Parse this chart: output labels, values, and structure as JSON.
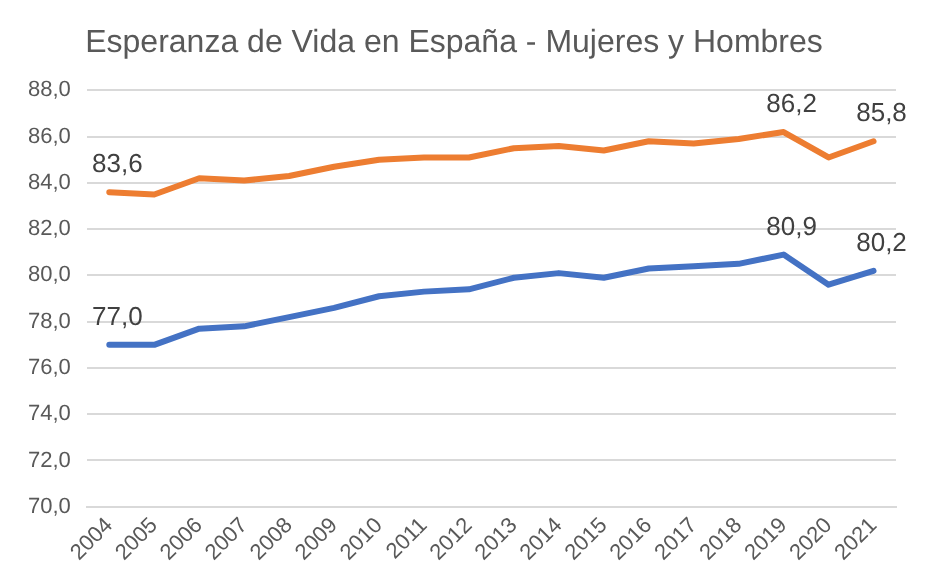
{
  "chart_data": {
    "type": "line",
    "title": "Esperanza de Vida en España - Mujeres y Hombres",
    "categories": [
      "2004",
      "2005",
      "2006",
      "2007",
      "2008",
      "2009",
      "2010",
      "2011",
      "2012",
      "2013",
      "2014",
      "2015",
      "2016",
      "2017",
      "2018",
      "2019",
      "2020",
      "2021"
    ],
    "series": [
      {
        "color": "#ed7d31",
        "values": [
          83.6,
          83.5,
          84.2,
          84.1,
          84.3,
          84.7,
          85.0,
          85.1,
          85.1,
          85.5,
          85.6,
          85.4,
          85.8,
          85.7,
          85.9,
          86.2,
          85.1,
          85.8
        ],
        "value_labels": [
          "83,6",
          null,
          null,
          null,
          null,
          null,
          null,
          null,
          null,
          null,
          null,
          null,
          null,
          null,
          null,
          "86,2",
          null,
          "85,8"
        ]
      },
      {
        "color": "#4472c4",
        "values": [
          77.0,
          77.0,
          77.7,
          77.8,
          78.2,
          78.6,
          79.1,
          79.3,
          79.4,
          79.9,
          80.1,
          79.9,
          80.3,
          80.4,
          80.5,
          80.9,
          79.6,
          80.2
        ],
        "value_labels": [
          "77,0",
          null,
          null,
          null,
          null,
          null,
          null,
          null,
          null,
          null,
          null,
          null,
          null,
          null,
          null,
          "80,9",
          null,
          "80,2"
        ]
      }
    ],
    "ylim": [
      70,
      88
    ],
    "yticks": [
      {
        "value": 70,
        "label": "70,0"
      },
      {
        "value": 72,
        "label": "72,0"
      },
      {
        "value": 74,
        "label": "74,0"
      },
      {
        "value": 76,
        "label": "76,0"
      },
      {
        "value": 78,
        "label": "78,0"
      },
      {
        "value": 80,
        "label": "80,0"
      },
      {
        "value": 82,
        "label": "82,0"
      },
      {
        "value": 84,
        "label": "84,0"
      },
      {
        "value": 86,
        "label": "86,0"
      },
      {
        "value": 88,
        "label": "88,0"
      }
    ],
    "grid": "y",
    "legend": false,
    "marker": "none",
    "line_style": "solid"
  }
}
